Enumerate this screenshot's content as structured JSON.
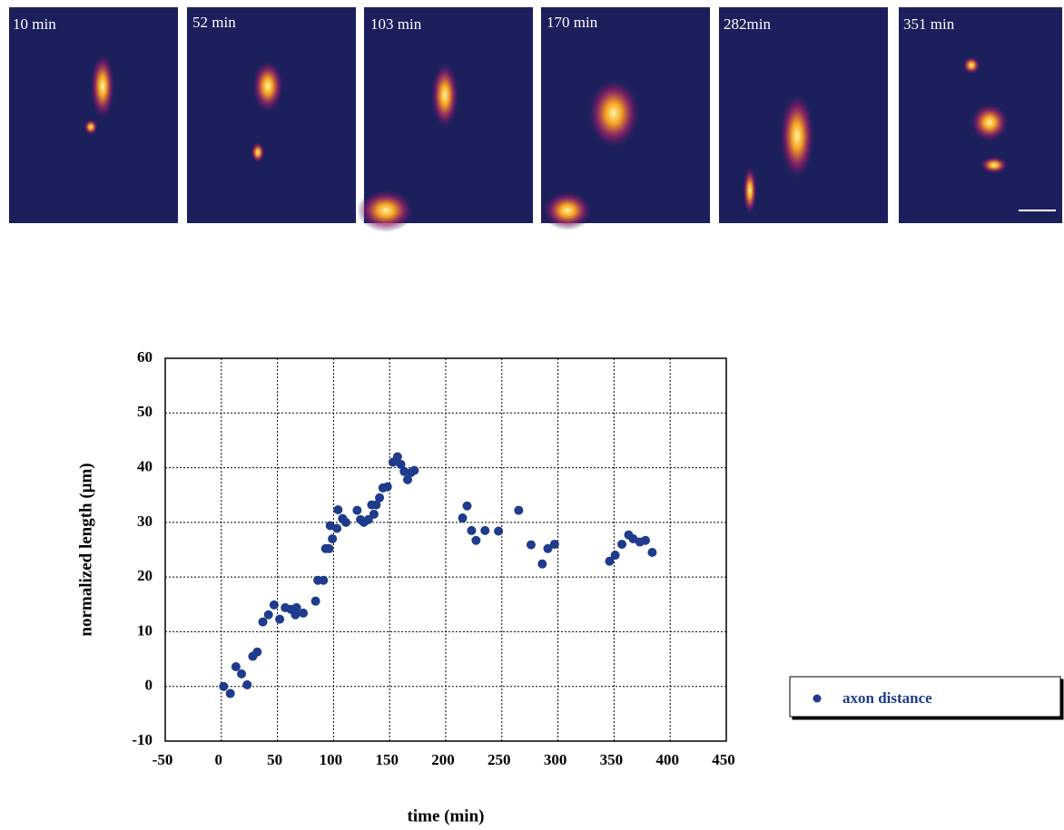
{
  "panels": [
    {
      "label": "10 min"
    },
    {
      "label": "52 min"
    },
    {
      "label": "103 min"
    },
    {
      "label": "170 min"
    },
    {
      "label": "282min"
    },
    {
      "label": "351 min"
    }
  ],
  "chart_data": {
    "type": "scatter",
    "x_label": "time (min)",
    "y_label": "normalized length (μm)",
    "xlim": [
      -50,
      450
    ],
    "xticks": [
      -50,
      0,
      50,
      100,
      150,
      200,
      250,
      300,
      350,
      400,
      450
    ],
    "ylim": [
      -10,
      60
    ],
    "yticks": [
      -10,
      0,
      10,
      20,
      30,
      40,
      50,
      60
    ],
    "grid": true,
    "legend": "right",
    "x": [
      2,
      8,
      13,
      18,
      23,
      28,
      32,
      37,
      42,
      47,
      52,
      57,
      62,
      67,
      66,
      73,
      84,
      86,
      91,
      93,
      96,
      97,
      99,
      103,
      104,
      108,
      111,
      121,
      124,
      127,
      131,
      134,
      136,
      138,
      141,
      144,
      148,
      153,
      157,
      160,
      163,
      166,
      169,
      172,
      215,
      219,
      223,
      227,
      235,
      247,
      265,
      276,
      286,
      291,
      297,
      346,
      351,
      357,
      363,
      367,
      373,
      378,
      384
    ],
    "series": [
      {
        "name": "axon distance",
        "color": "#1f3b8c",
        "values": [
          0,
          -1.3,
          3.6,
          2.3,
          0.3,
          5.5,
          6.3,
          11.8,
          13.1,
          14.9,
          12.3,
          14.4,
          14.1,
          14.4,
          13.1,
          13.4,
          15.6,
          19.4,
          19.4,
          25.2,
          25.2,
          29.4,
          27.0,
          28.9,
          32.3,
          30.7,
          30.0,
          32.2,
          30.5,
          30.0,
          30.5,
          33.2,
          31.5,
          33.2,
          34.5,
          36.3,
          36.5,
          41.0,
          42.0,
          40.6,
          39.3,
          37.8,
          39.1,
          39.5,
          30.8,
          33.0,
          28.5,
          26.7,
          28.5,
          28.4,
          32.2,
          25.9,
          22.4,
          25.2,
          26.0,
          22.9,
          24.0,
          26.0,
          27.7,
          27.0,
          26.4,
          26.7,
          24.5
        ]
      }
    ]
  }
}
